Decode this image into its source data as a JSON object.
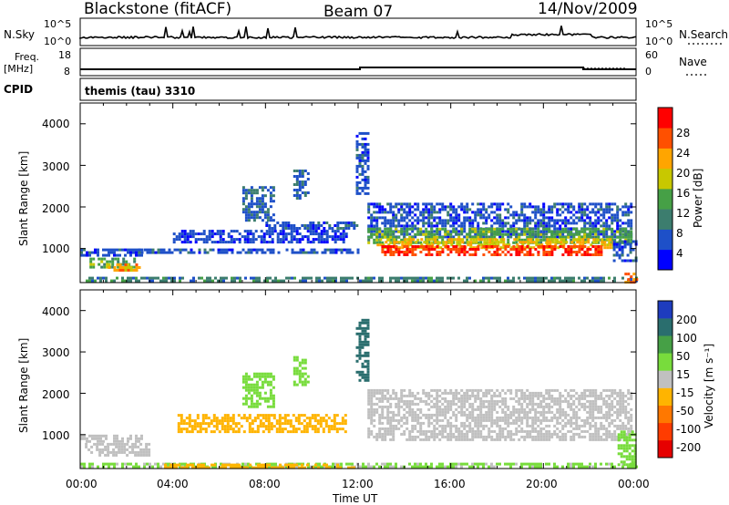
{
  "header": {
    "station": "Blackstone (fitACF)",
    "beam": "Beam 07",
    "date": "14/Nov/2009"
  },
  "panels": {
    "nsky_label": "N.Sky",
    "nsky_ticks": [
      "10^5",
      "10^0"
    ],
    "nsearch_label": "N.Search",
    "nsearch_ticks": [
      "10^5",
      "10^0"
    ],
    "freq_label": "Freq.",
    "freq_unit": "[MHz]",
    "freq_ticks": [
      "18",
      "8"
    ],
    "nave_label": "Nave",
    "nave_ticks": [
      "60",
      "0"
    ],
    "cpid_label": "CPID",
    "cpid_value": "themis (tau) 3310"
  },
  "axes": {
    "y_label": "Slant Range [km]",
    "y_ticks": [
      "4000",
      "3000",
      "2000",
      "1000"
    ],
    "x_label": "Time UT",
    "x_ticks": [
      "00:00",
      "04:00",
      "08:00",
      "12:00",
      "16:00",
      "20:00",
      "00:00"
    ]
  },
  "power_scale": {
    "label": "Power [dB]",
    "ticks": [
      "28",
      "24",
      "20",
      "16",
      "12",
      "8",
      "4"
    ],
    "colors": [
      "#0000ff",
      "#1e50c8",
      "#3c7d6e",
      "#46a046",
      "#c8c800",
      "#ffa500",
      "#ff5000",
      "#ff0000"
    ]
  },
  "velocity_scale": {
    "label": "Velocity [m s⁻¹]",
    "ticks": [
      "200",
      "100",
      "50",
      "15",
      "-15",
      "-50",
      "-100",
      "-200"
    ],
    "colors": [
      "#1e3cbe",
      "#2a6e6e",
      "#46a046",
      "#78dc3c",
      "#c0c0c0",
      "#ffb400",
      "#ff7800",
      "#ff3c00",
      "#e60000"
    ]
  },
  "chart_data": [
    {
      "type": "heatmap",
      "panel": "power",
      "xlabel": "Time UT",
      "ylabel": "Slant Range [km]",
      "xlim_hours": [
        0,
        24
      ],
      "ylim": [
        180,
        4500
      ],
      "zlabel": "Power [dB]",
      "zlim": [
        0,
        32
      ],
      "regions": [
        {
          "t": [
            0.0,
            2.7
          ],
          "r": [
            820,
            1000
          ],
          "value": 6
        },
        {
          "t": [
            0.4,
            2.3
          ],
          "r": [
            560,
            780
          ],
          "value": 14
        },
        {
          "t": [
            1.2,
            2.6
          ],
          "r": [
            480,
            640
          ],
          "value": 22
        },
        {
          "t": [
            0.0,
            24.0
          ],
          "r": [
            200,
            320
          ],
          "value": 10
        },
        {
          "t": [
            2.5,
            12.0
          ],
          "r": [
            880,
            1000
          ],
          "value": 6
        },
        {
          "t": [
            4.0,
            11.5
          ],
          "r": [
            1150,
            1450
          ],
          "value": 5
        },
        {
          "t": [
            7.0,
            8.3
          ],
          "r": [
            1700,
            2500
          ],
          "value": 7
        },
        {
          "t": [
            8.0,
            12.0
          ],
          "r": [
            1500,
            1650
          ],
          "value": 6
        },
        {
          "t": [
            9.2,
            9.8
          ],
          "r": [
            2200,
            2900
          ],
          "value": 7
        },
        {
          "t": [
            11.9,
            12.4
          ],
          "r": [
            2300,
            3800
          ],
          "value": 6
        },
        {
          "t": [
            12.4,
            23.8
          ],
          "r": [
            1300,
            2100
          ],
          "value": 6
        },
        {
          "t": [
            12.4,
            23.8
          ],
          "r": [
            1150,
            1500
          ],
          "value": 14
        },
        {
          "t": [
            12.8,
            23.0
          ],
          "r": [
            1000,
            1250
          ],
          "value": 20
        },
        {
          "t": [
            13.0,
            22.5
          ],
          "r": [
            880,
            1080
          ],
          "value": 28
        },
        {
          "t": [
            23.0,
            24.0
          ],
          "r": [
            700,
            1200
          ],
          "value": 6
        },
        {
          "t": [
            23.5,
            24.0
          ],
          "r": [
            220,
            420
          ],
          "value": 24
        }
      ]
    },
    {
      "type": "heatmap",
      "panel": "velocity",
      "xlabel": "Time UT",
      "ylabel": "Slant Range [km]",
      "xlim_hours": [
        0,
        24
      ],
      "ylim": [
        180,
        4500
      ],
      "zlabel": "Velocity [m s⁻¹]",
      "zlim": [
        -200,
        200
      ],
      "regions": [
        {
          "t": [
            0.0,
            2.7
          ],
          "r": [
            820,
            1000
          ],
          "value": 0
        },
        {
          "t": [
            0.2,
            3.0
          ],
          "r": [
            500,
            800
          ],
          "value": 0
        },
        {
          "t": [
            0.0,
            24.0
          ],
          "r": [
            200,
            320
          ],
          "value": 20
        },
        {
          "t": [
            3.5,
            11.8
          ],
          "r": [
            200,
            300
          ],
          "value": -40
        },
        {
          "t": [
            4.2,
            11.5
          ],
          "r": [
            1100,
            1500
          ],
          "value": -40
        },
        {
          "t": [
            7.0,
            8.3
          ],
          "r": [
            1700,
            2500
          ],
          "value": 30
        },
        {
          "t": [
            9.2,
            9.8
          ],
          "r": [
            2200,
            2900
          ],
          "value": 30
        },
        {
          "t": [
            11.9,
            12.4
          ],
          "r": [
            2300,
            3800
          ],
          "value": 150
        },
        {
          "t": [
            12.4,
            23.8
          ],
          "r": [
            900,
            2100
          ],
          "value": 0
        },
        {
          "t": [
            23.2,
            24.0
          ],
          "r": [
            300,
            1100
          ],
          "value": 30
        }
      ]
    }
  ]
}
